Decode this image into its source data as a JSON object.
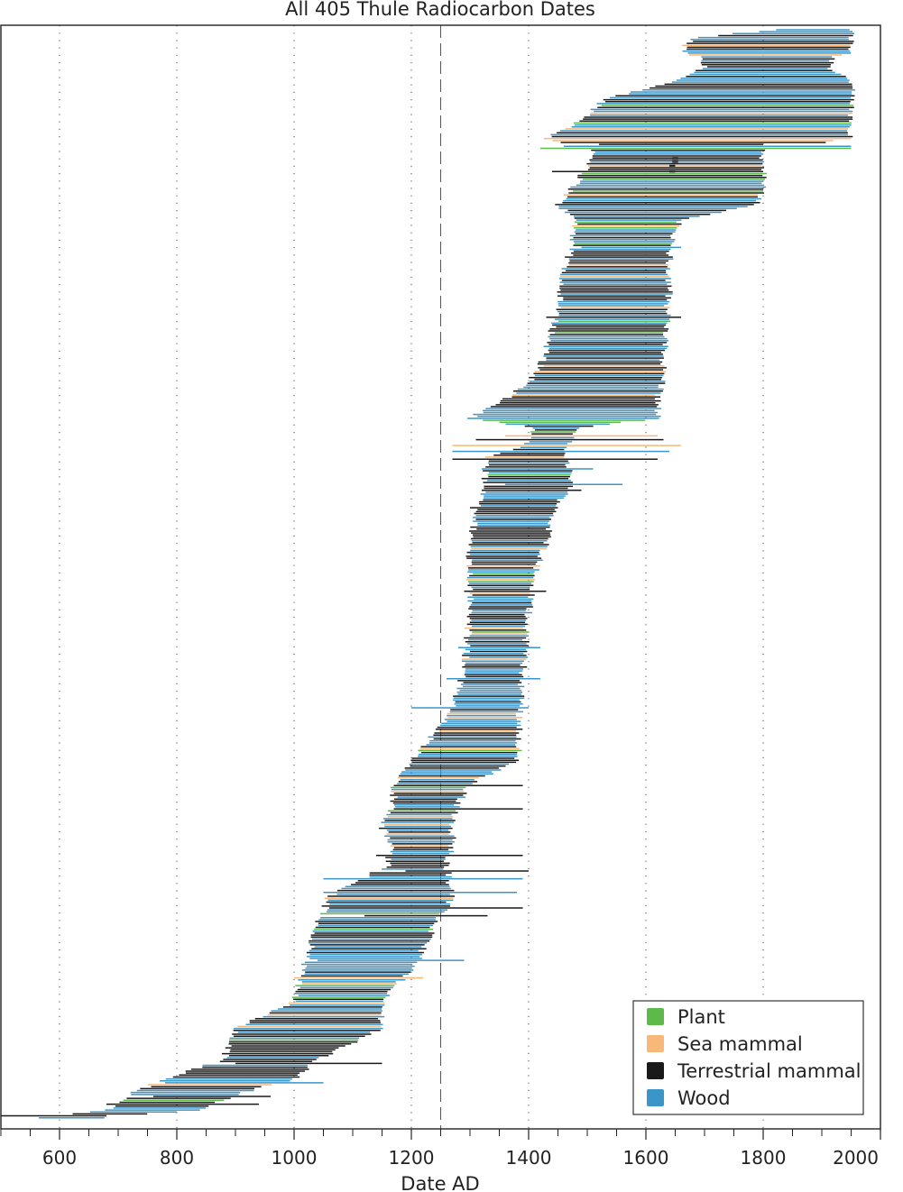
{
  "chart_data": {
    "type": "range",
    "title": "All 405 Thule Radiocarbon Dates",
    "xlabel": "Date AD",
    "ylabel": "",
    "xlim": [
      500,
      2000
    ],
    "xticks": [
      600,
      800,
      1000,
      1200,
      1400,
      1600,
      1800,
      2000
    ],
    "minor_tick_step": 50,
    "vertical_reference_line": 1250,
    "gridlines_x": [
      600,
      800,
      1000,
      1200,
      1400,
      1600,
      1800
    ],
    "n_dates": 405,
    "legend_position": "bottom-right",
    "legend": [
      {
        "label": "Plant",
        "color": "#5cb94a"
      },
      {
        "label": "Sea mammal",
        "color": "#f8b87a"
      },
      {
        "label": "Terrestrial mammal",
        "color": "#1a1a1a"
      },
      {
        "label": "Wood",
        "color": "#3c95c8"
      }
    ],
    "anchors": [
      [
        0,
        1820,
        1950
      ],
      [
        4,
        1685,
        1950
      ],
      [
        8,
        1665,
        1950
      ],
      [
        12,
        1665,
        1950
      ],
      [
        14,
        1690,
        1920
      ],
      [
        20,
        1700,
        1915
      ],
      [
        26,
        1650,
        1950
      ],
      [
        36,
        1530,
        1950
      ],
      [
        46,
        1495,
        1950
      ],
      [
        56,
        1430,
        1950
      ],
      [
        62,
        1510,
        1800
      ],
      [
        70,
        1500,
        1800
      ],
      [
        80,
        1480,
        1800
      ],
      [
        90,
        1450,
        1790
      ],
      [
        98,
        1480,
        1660
      ],
      [
        110,
        1475,
        1640
      ],
      [
        125,
        1460,
        1640
      ],
      [
        135,
        1455,
        1640
      ],
      [
        150,
        1445,
        1635
      ],
      [
        170,
        1425,
        1630
      ],
      [
        180,
        1405,
        1630
      ],
      [
        190,
        1360,
        1620
      ],
      [
        200,
        1300,
        1620
      ],
      [
        205,
        1410,
        1480
      ],
      [
        214,
        1390,
        1470
      ],
      [
        220,
        1330,
        1460
      ],
      [
        232,
        1325,
        1475
      ],
      [
        250,
        1310,
        1440
      ],
      [
        265,
        1300,
        1430
      ],
      [
        280,
        1300,
        1410
      ],
      [
        300,
        1300,
        1400
      ],
      [
        330,
        1290,
        1390
      ],
      [
        350,
        1270,
        1385
      ],
      [
        362,
        1240,
        1385
      ],
      [
        376,
        1200,
        1380
      ],
      [
        388,
        1170,
        1300
      ],
      [
        398,
        1170,
        1280
      ],
      [
        410,
        1150,
        1270
      ],
      [
        420,
        1165,
        1270
      ],
      [
        430,
        1160,
        1260
      ],
      [
        446,
        1060,
        1270
      ],
      [
        460,
        1040,
        1240
      ],
      [
        480,
        1020,
        1210
      ],
      [
        500,
        1000,
        1150
      ],
      [
        514,
        900,
        1150
      ],
      [
        530,
        880,
        1040
      ],
      [
        540,
        780,
        1000
      ],
      [
        548,
        720,
        900
      ],
      [
        556,
        680,
        840
      ],
      [
        560,
        560,
        670
      ]
    ],
    "wide_ranges": [
      [
        59,
        1520,
        1800
      ],
      [
        60,
        1460,
        1950
      ],
      [
        61,
        1420,
        1950
      ],
      [
        73,
        1440,
        1800
      ],
      [
        112,
        1490,
        1660
      ],
      [
        148,
        1430,
        1660
      ],
      [
        209,
        1360,
        1620
      ],
      [
        211,
        1310,
        1630
      ],
      [
        214,
        1270,
        1660
      ],
      [
        217,
        1270,
        1640
      ],
      [
        221,
        1270,
        1620
      ],
      [
        226,
        1320,
        1510
      ],
      [
        234,
        1360,
        1560
      ],
      [
        237,
        1320,
        1490
      ],
      [
        246,
        1300,
        1450
      ],
      [
        289,
        1290,
        1430
      ],
      [
        318,
        1280,
        1420
      ],
      [
        334,
        1260,
        1420
      ],
      [
        349,
        1200,
        1400
      ],
      [
        389,
        1170,
        1390
      ],
      [
        401,
        1170,
        1390
      ],
      [
        425,
        1140,
        1390
      ],
      [
        433,
        1190,
        1400
      ],
      [
        437,
        1050,
        1390
      ],
      [
        444,
        1050,
        1380
      ],
      [
        452,
        1060,
        1390
      ],
      [
        456,
        1120,
        1330
      ],
      [
        479,
        1040,
        1290
      ],
      [
        488,
        1000,
        1220
      ],
      [
        532,
        900,
        1150
      ],
      [
        542,
        780,
        1050
      ],
      [
        549,
        760,
        960
      ],
      [
        553,
        680,
        940
      ],
      [
        559,
        500,
        680
      ]
    ],
    "dot_markers": [
      [
        66,
        1645,
        1655
      ],
      [
        68,
        1645,
        1655
      ],
      [
        70,
        1640,
        1650
      ],
      [
        73,
        1640,
        1650
      ]
    ]
  }
}
